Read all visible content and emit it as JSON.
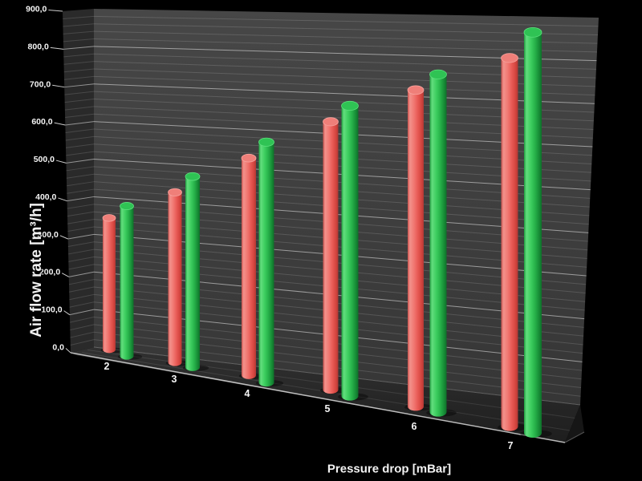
{
  "chart_data": {
    "type": "bar",
    "render_style": "3d-cylinder",
    "background": "#000000",
    "title": "",
    "xlabel": "Pressure drop [mBar]",
    "ylabel": "Air flow rate [m³/h]",
    "categories": [
      "2",
      "3",
      "4",
      "5",
      "6",
      "7"
    ],
    "series": [
      {
        "name": "red",
        "color": "#e8534e",
        "values": [
          350,
          420,
          510,
          600,
          690,
          770
        ]
      },
      {
        "name": "green",
        "color": "#2dbd53",
        "values": [
          380,
          460,
          550,
          650,
          720,
          830
        ]
      }
    ],
    "ylim": [
      0,
      900
    ],
    "y_tick_step": 100,
    "y_minor_step": 20,
    "y_tick_labels": [
      "0,0",
      "100,0",
      "200,0",
      "300,0",
      "400,0",
      "500,0",
      "600,0",
      "700,0",
      "800,0",
      "900,0"
    ],
    "legend": "none",
    "grid": "horizontal-major-and-minor-on-back-wall",
    "wall_color": "#3d3d3d",
    "left_wall_color": "#2a2a2a",
    "floor_color": "#262626",
    "gridline_major_color": "#e6e6e6",
    "gridline_minor_color": "#5a5a5a"
  }
}
